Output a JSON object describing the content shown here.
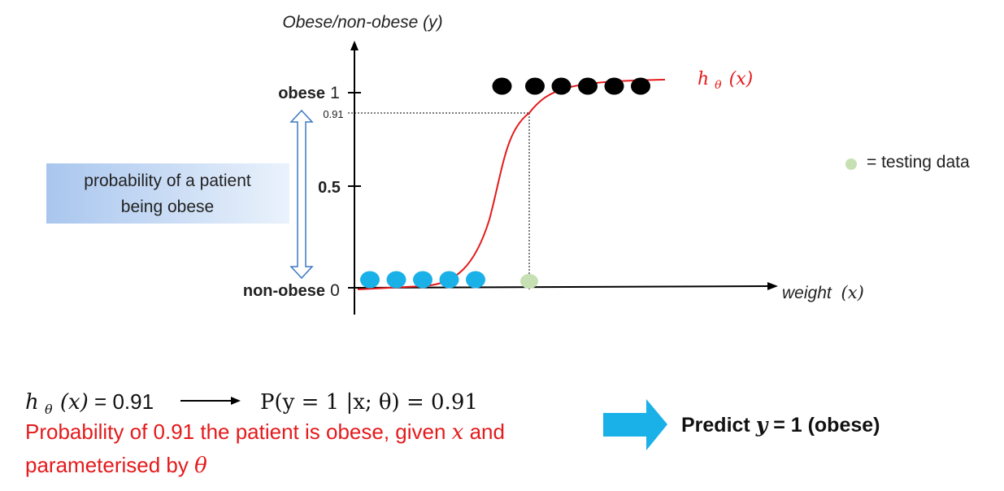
{
  "axis": {
    "y_title": "Obese/non-obese (y)",
    "x_title_word": "weight",
    "x_title_var": "(x)",
    "y_tick_top_label": "obese",
    "y_tick_top_value": "1",
    "y_tick_mid_value": "0.5",
    "y_tick_bottom_label": "non-obese",
    "y_tick_bottom_value": "0",
    "tick_091": "0.91"
  },
  "curve_label": {
    "h": "h",
    "theta": "θ",
    "arg": "(x)"
  },
  "legend": {
    "text": "= testing data",
    "color": "#c6e0b4"
  },
  "prob_box": {
    "line1": "probability of a patient",
    "line2": "being obese"
  },
  "colors": {
    "curve": "#e41a1c",
    "non_obese_points": "#1ab0e8",
    "obese_points": "#000000",
    "test_point": "#c6e0b4",
    "arrow_blue": "#1ab0e8",
    "red_text": "#e41a1c"
  },
  "chart_data": {
    "type": "scatter",
    "series": [
      {
        "values": [
          [
            1,
            0
          ],
          [
            2,
            0
          ],
          [
            3,
            0
          ],
          [
            4,
            0
          ],
          [
            5,
            0
          ]
        ]
      },
      {
        "values": [
          [
            6,
            1
          ],
          [
            7,
            1
          ],
          [
            8,
            1
          ],
          [
            9,
            1
          ],
          [
            10,
            1
          ],
          [
            11,
            1
          ]
        ]
      },
      {
        "values": [
          [
            7,
            0
          ]
        ]
      }
    ],
    "test_point": {
      "x": 7,
      "y": 0,
      "prediction": 0.91
    }
  },
  "bottom": {
    "eq_h": "h",
    "eq_theta": "θ",
    "eq_arg": "(x)",
    "eq_value": " = 0.91",
    "prob_eq": "P(y = 1 |x; θ) = 0.91",
    "red_line1_a": "Probability of 0.91 the patient is obese, given ",
    "red_line1_var": "x",
    "red_line1_b": " and",
    "red_line2_a": "parameterised by ",
    "red_line2_var": "θ",
    "predict_a": "Predict ",
    "predict_var": "y",
    "predict_b": " = 1 (obese)"
  }
}
